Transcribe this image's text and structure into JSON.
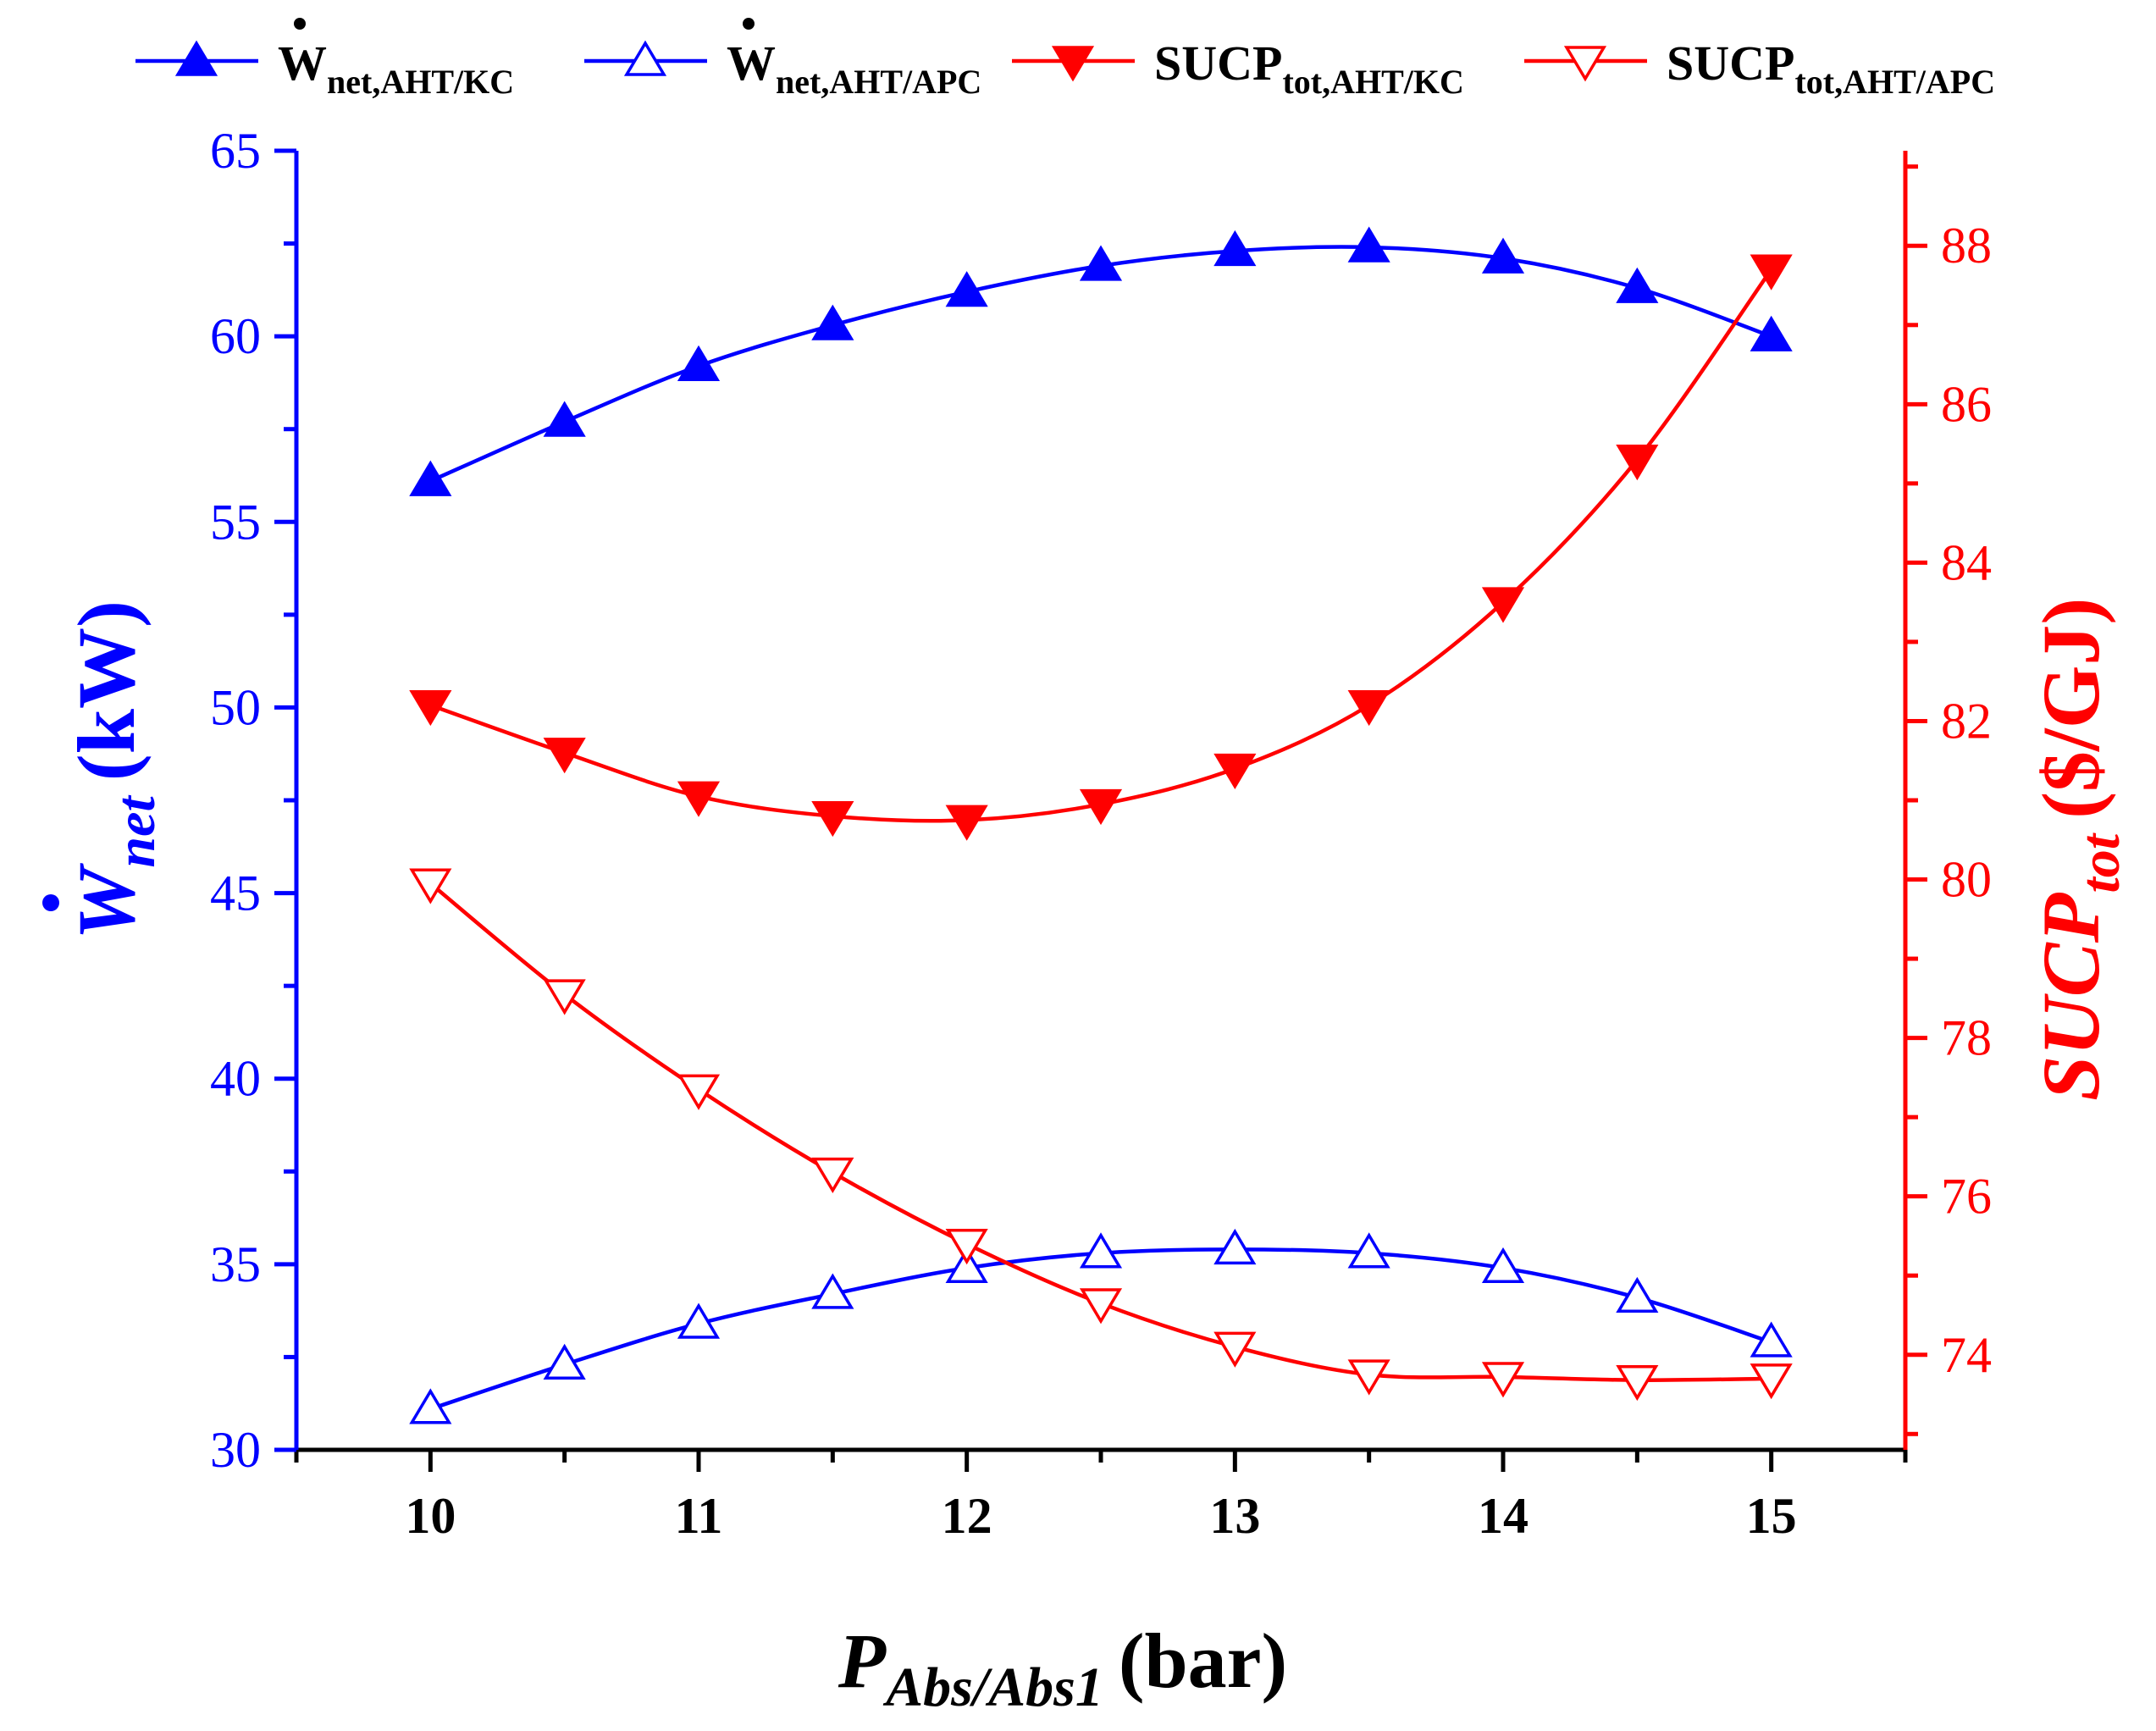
{
  "chart_data": {
    "type": "line",
    "x": [
      10,
      10.5,
      11,
      11.5,
      12,
      12.5,
      13,
      13.5,
      14,
      14.5,
      15
    ],
    "xlabel": {
      "main": "P",
      "sub": "Abs/Abs1",
      "unit": "(bar)"
    },
    "xlim": [
      9.5,
      15.5
    ],
    "xticks": [
      10,
      11,
      12,
      13,
      14,
      15
    ],
    "left_axis": {
      "label": {
        "main": "W",
        "sub": "net",
        "unit": "(kW)"
      },
      "ylim": [
        30,
        65
      ],
      "ticks": [
        30,
        35,
        40,
        45,
        50,
        55,
        60,
        65
      ],
      "color": "#0000ff"
    },
    "right_axis": {
      "label": {
        "main": "SUCP",
        "sub": "tot",
        "unit": "($/GJ)"
      },
      "ylim": [
        72.8,
        89.2
      ],
      "ticks": [
        74,
        76,
        78,
        80,
        82,
        84,
        86,
        88
      ],
      "color": "#ff0000"
    },
    "series": [
      {
        "name": "W_net,AHT/KC",
        "legend_main": "W",
        "legend_sub": "net,AHT/KC",
        "dot": true,
        "axis": "left",
        "color": "#0000ff",
        "marker": "triangle-up",
        "filled": true,
        "values": [
          56.1,
          57.7,
          59.2,
          60.3,
          61.2,
          61.9,
          62.3,
          62.4,
          62.1,
          61.3,
          60.0
        ]
      },
      {
        "name": "W_net,AHT/APC",
        "legend_main": "W",
        "legend_sub": "net,AHT/APC",
        "dot": true,
        "axis": "left",
        "color": "#0000ff",
        "marker": "triangle-up",
        "filled": false,
        "values": [
          31.1,
          32.3,
          33.4,
          34.2,
          34.9,
          35.3,
          35.4,
          35.3,
          34.9,
          34.1,
          32.9
        ]
      },
      {
        "name": "SUCP_tot,AHT/KC",
        "legend_main": "SUCP",
        "legend_sub": "tot,AHT/KC",
        "dot": false,
        "axis": "right",
        "color": "#ff0000",
        "marker": "triangle-down",
        "filled": true,
        "values": [
          82.2,
          81.6,
          81.05,
          80.8,
          80.75,
          80.95,
          81.4,
          82.2,
          83.5,
          85.3,
          87.7
        ]
      },
      {
        "name": "SUCP_tot,AHT/APC",
        "legend_main": "SUCP",
        "legend_sub": "tot,AHT/APC",
        "dot": false,
        "axis": "right",
        "color": "#ff0000",
        "marker": "triangle-down",
        "filled": false,
        "values": [
          79.95,
          78.55,
          77.35,
          76.3,
          75.4,
          74.65,
          74.1,
          73.75,
          73.72,
          73.68,
          73.7
        ]
      }
    ]
  }
}
